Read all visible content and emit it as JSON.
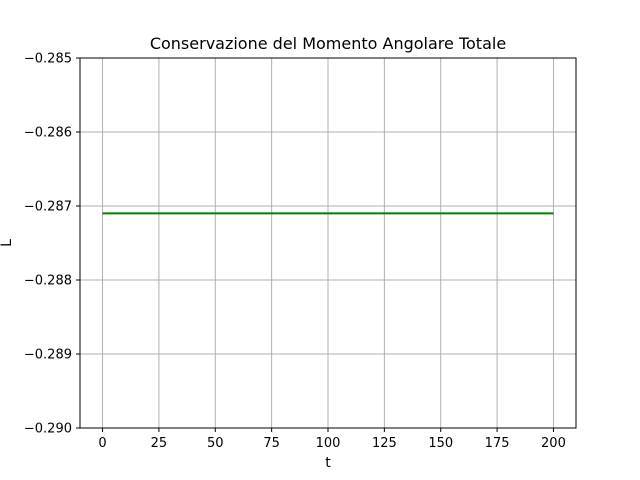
{
  "chart_data": {
    "type": "line",
    "title": "Conservazione del Momento Angolare Totale",
    "xlabel": "t",
    "ylabel": "L",
    "xlim": [
      -10,
      210
    ],
    "ylim": [
      -0.29,
      -0.285
    ],
    "xticks": [
      0,
      25,
      50,
      75,
      100,
      125,
      150,
      175,
      200
    ],
    "xtick_labels": [
      "0",
      "25",
      "50",
      "75",
      "100",
      "125",
      "150",
      "175",
      "200"
    ],
    "yticks": [
      -0.29,
      -0.289,
      -0.288,
      -0.287,
      -0.286,
      -0.285
    ],
    "ytick_labels": [
      "−0.290",
      "−0.289",
      "−0.288",
      "−0.287",
      "−0.286",
      "−0.285"
    ],
    "grid": true,
    "series": [
      {
        "color": "#008000",
        "x": [
          0,
          200
        ],
        "y": [
          -0.2871,
          -0.2871
        ]
      }
    ]
  }
}
